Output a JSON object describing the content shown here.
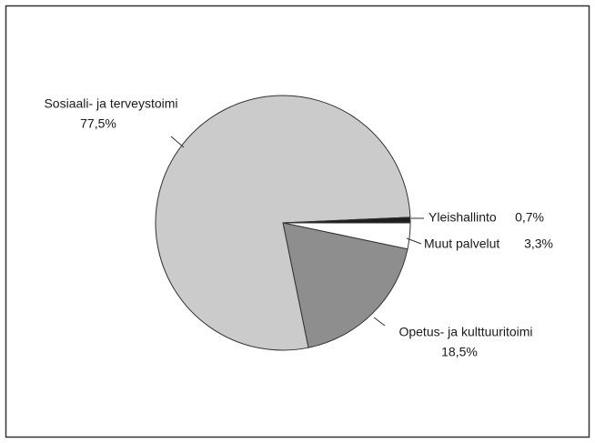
{
  "chart_data": {
    "type": "pie",
    "categories": [
      "Muut palvelut",
      "Opetus- ja kulttuuritoimi",
      "Sosiaali- ja terveystoimi",
      "Yleishallinto"
    ],
    "values": [
      3.3,
      18.5,
      77.5,
      0.7
    ],
    "value_labels": [
      "3,3%",
      "18,5%",
      "77,5%",
      "0,7%"
    ],
    "colors": [
      "#ffffff",
      "#8e8e8e",
      "#cbcbcb",
      "#1e1e1e"
    ]
  }
}
